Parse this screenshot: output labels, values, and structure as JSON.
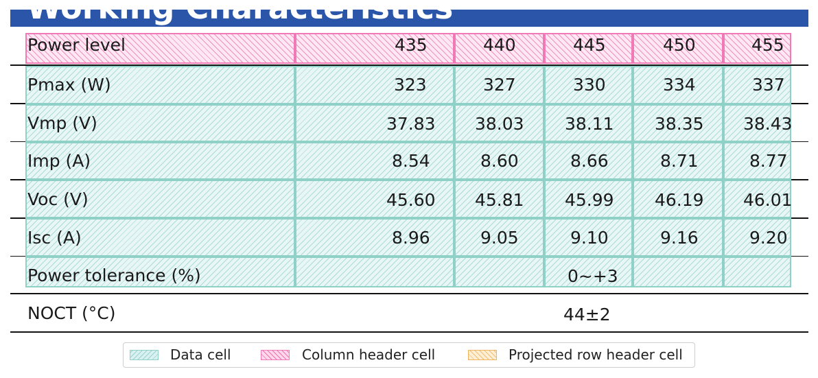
{
  "title": "Working Characteristics",
  "column_headers": [
    "Power level",
    "435",
    "440",
    "445",
    "450",
    "455"
  ],
  "rows": [
    {
      "label": "Pmax (W)",
      "values": [
        "323",
        "327",
        "330",
        "334",
        "337"
      ]
    },
    {
      "label": "Vmp (V)",
      "values": [
        "37.83",
        "38.03",
        "38.11",
        "38.35",
        "38.43"
      ]
    },
    {
      "label": "Imp (A)",
      "values": [
        "8.54",
        "8.60",
        "8.66",
        "8.71",
        "8.77"
      ]
    },
    {
      "label": "Voc (V)",
      "values": [
        "45.60",
        "45.81",
        "45.99",
        "46.19",
        "46.01"
      ]
    },
    {
      "label": "Isc (A)",
      "values": [
        "8.96",
        "9.05",
        "9.10",
        "9.16",
        "9.20"
      ]
    }
  ],
  "power_tolerance": {
    "label": "Power tolerance (%)",
    "value": "0~+3"
  },
  "noct": {
    "label": "NOCT (°C)",
    "value": "44±2"
  },
  "legend": [
    "Data cell",
    "Column header cell",
    "Projected row header cell"
  ],
  "colors": {
    "banner": "#2a55a8",
    "data_cell": "#8fd0c7",
    "column_header_cell": "#f07ab5",
    "projected_row_header_cell": "#f0b460"
  }
}
